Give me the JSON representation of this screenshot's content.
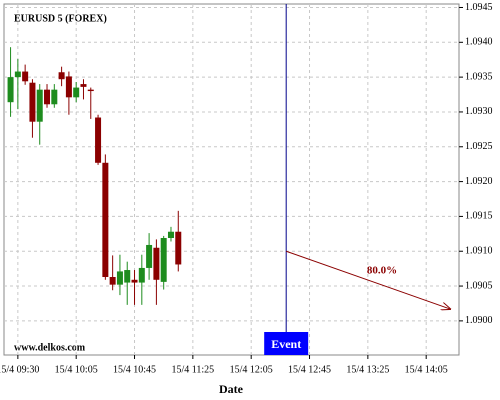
{
  "chart_data": {
    "type": "candlestick",
    "title": "EURUSD 5 (FOREX)",
    "watermark": "www.delkos.com",
    "x_label": "Date",
    "x": [
      0,
      1,
      2,
      3,
      4,
      5,
      6,
      7,
      8,
      9,
      10,
      11,
      12,
      13,
      14,
      15,
      16,
      17,
      18,
      19,
      20,
      21,
      22,
      23
    ],
    "open": [
      1.09314,
      1.0935,
      1.09358,
      1.09342,
      1.09286,
      1.09332,
      1.09311,
      1.09357,
      1.09351,
      1.09321,
      1.0934,
      1.09332,
      1.09292,
      1.09227,
      1.09063,
      1.09052,
      1.09055,
      1.09059,
      1.09055,
      1.09076,
      1.09105,
      1.09056,
      1.09119,
      1.09128
    ],
    "high": [
      1.09393,
      1.09376,
      1.09368,
      1.09347,
      1.0934,
      1.0934,
      1.0934,
      1.09365,
      1.09358,
      1.09343,
      1.09347,
      1.09335,
      1.09296,
      1.09239,
      1.09094,
      1.09095,
      1.09085,
      1.09073,
      1.09095,
      1.09126,
      1.09117,
      1.09122,
      1.09135,
      1.09158
    ],
    "low": [
      1.09293,
      1.09304,
      1.09339,
      1.09263,
      1.09253,
      1.09306,
      1.09306,
      1.09337,
      1.09296,
      1.09314,
      1.09318,
      1.0929,
      1.09224,
      1.09059,
      1.09044,
      1.09037,
      1.09023,
      1.09023,
      1.09023,
      1.09059,
      1.09023,
      1.09045,
      1.09114,
      1.09071
    ],
    "close": [
      1.0935,
      1.09358,
      1.09344,
      1.09286,
      1.09332,
      1.09311,
      1.09332,
      1.09347,
      1.09321,
      1.09335,
      1.09336,
      1.0933,
      1.09227,
      1.09063,
      1.09052,
      1.09071,
      1.09073,
      1.09055,
      1.09076,
      1.09109,
      1.09059,
      1.09119,
      1.09128,
      1.09081
    ],
    "up_color": "#1e8c1e",
    "down_color": "#8b0000",
    "xlim": [
      -0.9,
      61.5
    ],
    "xticks": [
      {
        "value": 1,
        "label": "15/4 09:30"
      },
      {
        "value": 9,
        "label": "15/4 10:05"
      },
      {
        "value": 17,
        "label": "15/4 10:45"
      },
      {
        "value": 25,
        "label": "15/4 11:25"
      },
      {
        "value": 33,
        "label": "15/4 12:05"
      },
      {
        "value": 41,
        "label": "15/4 12:45"
      },
      {
        "value": 49,
        "label": "15/4 13:25"
      },
      {
        "value": 57,
        "label": "15/4 14:05"
      }
    ],
    "ylim": [
      1.08951,
      1.09455
    ],
    "yticks": [
      {
        "value": 1.09,
        "label": "1.0900"
      },
      1.0905,
      {
        "value": 1.091,
        "label": "1.0910"
      },
      1.0915,
      {
        "value": 1.092,
        "label": "1.0920"
      },
      1.0925,
      {
        "value": 1.093,
        "label": "1.0930"
      },
      1.0935,
      {
        "value": 1.094,
        "label": "1.0940"
      },
      1.0945
    ],
    "grid": true,
    "event": {
      "x": 37.8,
      "label": "Event",
      "color": "#0000ff"
    },
    "forecast": {
      "x": [
        37.8,
        60.3
      ],
      "y": [
        1.091,
        1.09017
      ],
      "label": "80.0%",
      "color": "#8b0000"
    }
  }
}
